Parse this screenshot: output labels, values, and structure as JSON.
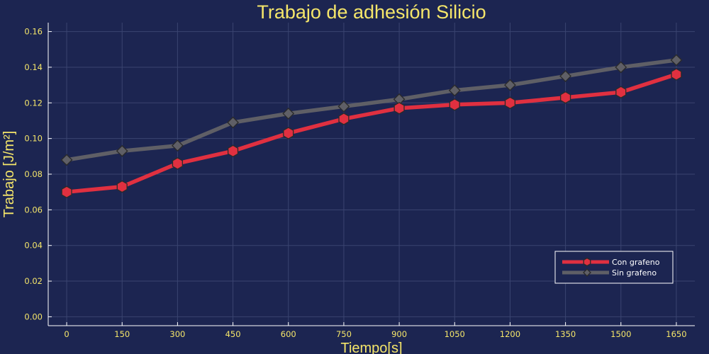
{
  "chart_data": {
    "type": "line",
    "title": "Trabajo de adhesión Silicio",
    "xlabel": "Tiempo[s]",
    "ylabel": "Trabajo [J/m²]",
    "x": [
      0,
      150,
      300,
      450,
      600,
      750,
      900,
      1050,
      1200,
      1350,
      1500,
      1650
    ],
    "xlim": [
      -50,
      1700
    ],
    "ylim": [
      -0.005,
      0.165
    ],
    "xticks": [
      "0",
      "150",
      "300",
      "450",
      "600",
      "750",
      "900",
      "1050",
      "1200",
      "1350",
      "1500",
      "1650"
    ],
    "yticks": [
      "0.00",
      "0.02",
      "0.04",
      "0.06",
      "0.08",
      "0.10",
      "0.12",
      "0.14",
      "0.16"
    ],
    "grid": true,
    "legend_position": "bottom-right",
    "series": [
      {
        "name": "Con grafeno",
        "color": "#e03040",
        "marker": "hexagon",
        "values": [
          0.07,
          0.073,
          0.086,
          0.093,
          0.103,
          0.111,
          0.117,
          0.119,
          0.12,
          0.123,
          0.126,
          0.136
        ]
      },
      {
        "name": "Sin grafeno",
        "color": "#5f5f66",
        "marker": "diamond",
        "values": [
          0.088,
          0.093,
          0.096,
          0.109,
          0.114,
          0.118,
          0.122,
          0.127,
          0.13,
          0.135,
          0.14,
          0.144
        ]
      }
    ]
  },
  "colors": {
    "background": "#1c2551",
    "text": "#f5e66a",
    "grid": "#3a4470",
    "axis": "#ffffff"
  }
}
